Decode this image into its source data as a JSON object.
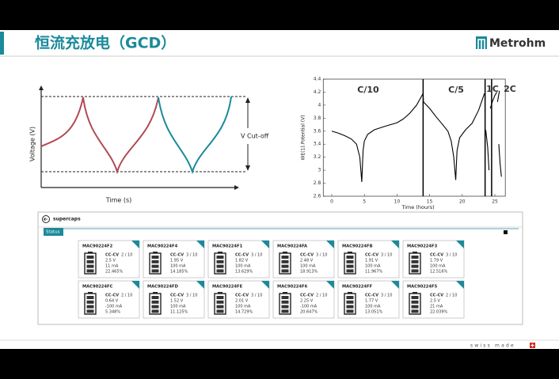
{
  "header": {
    "title": "恒流充放电（GCD）",
    "logo": "Metrohm"
  },
  "diagram": {
    "y_label": "Voltage (V)",
    "x_label": "Time (s)",
    "cutoff_label": "V Cut-off"
  },
  "chart_data": {
    "type": "line",
    "y_label": "WE(1).Potential (V)",
    "x_label": "Time (hours)",
    "annotations": [
      "C/10",
      "C/5",
      "1C",
      "2C"
    ],
    "vlines": [
      14,
      23.5,
      24.5
    ],
    "xlim": [
      -1.3,
      26.6
    ],
    "ylim": [
      2.6,
      4.4
    ],
    "xticks": [
      0,
      5,
      10,
      15,
      20,
      25
    ],
    "yticks": [
      2.6,
      2.8,
      3,
      3.2,
      3.4,
      3.6,
      3.8,
      4,
      4.2,
      4.4
    ],
    "color": "#000000",
    "x": [
      0,
      1,
      2,
      3,
      3.8,
      4.3,
      4.6,
      4.8,
      5,
      5.5,
      6.5,
      8,
      10,
      11,
      12,
      13,
      14,
      14.05,
      15,
      16,
      17,
      17.8,
      18.3,
      18.7,
      19,
      19.2,
      19.6,
      20.5,
      21.5,
      22.5,
      23.4,
      23.45,
      23.6,
      23.9,
      24.1,
      24.15,
      24.3,
      24.6,
      25,
      25.3,
      25.35,
      25.4,
      25.7,
      25.75,
      25.6,
      25.8,
      26
    ],
    "values": [
      3.6,
      3.57,
      3.53,
      3.48,
      3.4,
      3.2,
      2.82,
      3.3,
      3.45,
      3.55,
      3.62,
      3.67,
      3.73,
      3.79,
      3.88,
      4,
      4.18,
      4.05,
      3.95,
      3.82,
      3.7,
      3.6,
      3.45,
      3.2,
      2.85,
      3.3,
      3.5,
      3.62,
      3.72,
      3.92,
      4.18,
      null,
      3.62,
      3.35,
      3.0,
      null,
      3.95,
      4.05,
      4.15,
      4.2,
      null,
      4.05,
      4.22,
      null,
      3.4,
      3.1,
      2.9
    ]
  },
  "panel": {
    "title": "supercaps",
    "tab": "Status",
    "cards": [
      {
        "name": "MAC90224F2",
        "mode": "CC-CV",
        "cycle": "2 / 10",
        "voltage": "2.5 V",
        "current": "11 mA",
        "charge": "22.465%"
      },
      {
        "name": "MAC90224F4",
        "mode": "CC-CV",
        "cycle": "3 / 10",
        "voltage": "1.95 V",
        "current": "100 mA",
        "charge": "14.185%"
      },
      {
        "name": "MAC90224F1",
        "mode": "CC-CV",
        "cycle": "3 / 10",
        "voltage": "1.82 V",
        "current": "100 mA",
        "charge": "13.629%"
      },
      {
        "name": "MAC90224FA",
        "mode": "CC-CV",
        "cycle": "3 / 10",
        "voltage": "2.48 V",
        "current": "100 mA",
        "charge": "18.913%"
      },
      {
        "name": "MAC90224FB",
        "mode": "CC-CV",
        "cycle": "3 / 10",
        "voltage": "1.91 V",
        "current": "100 mA",
        "charge": "11.967%"
      },
      {
        "name": "MAC90224F3",
        "mode": "CC-CV",
        "cycle": "3 / 10",
        "voltage": "1.79 V",
        "current": "100 mA",
        "charge": "12.516%"
      },
      {
        "name": "MAC90224FC",
        "mode": "CC-CV",
        "cycle": "2 / 10",
        "voltage": "0.64 V",
        "current": "-100 mA",
        "charge": "5.348%"
      },
      {
        "name": "MAC90224FD",
        "mode": "CC-CV",
        "cycle": "3 / 10",
        "voltage": "1.52 V",
        "current": "100 mA",
        "charge": "11.125%"
      },
      {
        "name": "MAC90224FE",
        "mode": "CC-CV",
        "cycle": "3 / 10",
        "voltage": "2.01 V",
        "current": "100 mA",
        "charge": "14.729%"
      },
      {
        "name": "MAC90224F6",
        "mode": "CC-CV",
        "cycle": "2 / 10",
        "voltage": "2.25 V",
        "current": "-100 mA",
        "charge": "20.647%"
      },
      {
        "name": "MAC90224FF",
        "mode": "CC-CV",
        "cycle": "3 / 10",
        "voltage": "1.77 V",
        "current": "100 mA",
        "charge": "13.051%"
      },
      {
        "name": "MAC90224F5",
        "mode": "CC-CV",
        "cycle": "2 / 10",
        "voltage": "2.5 V",
        "current": "21 mA",
        "charge": "22.039%"
      }
    ]
  },
  "footer": {
    "text": "swiss made"
  }
}
